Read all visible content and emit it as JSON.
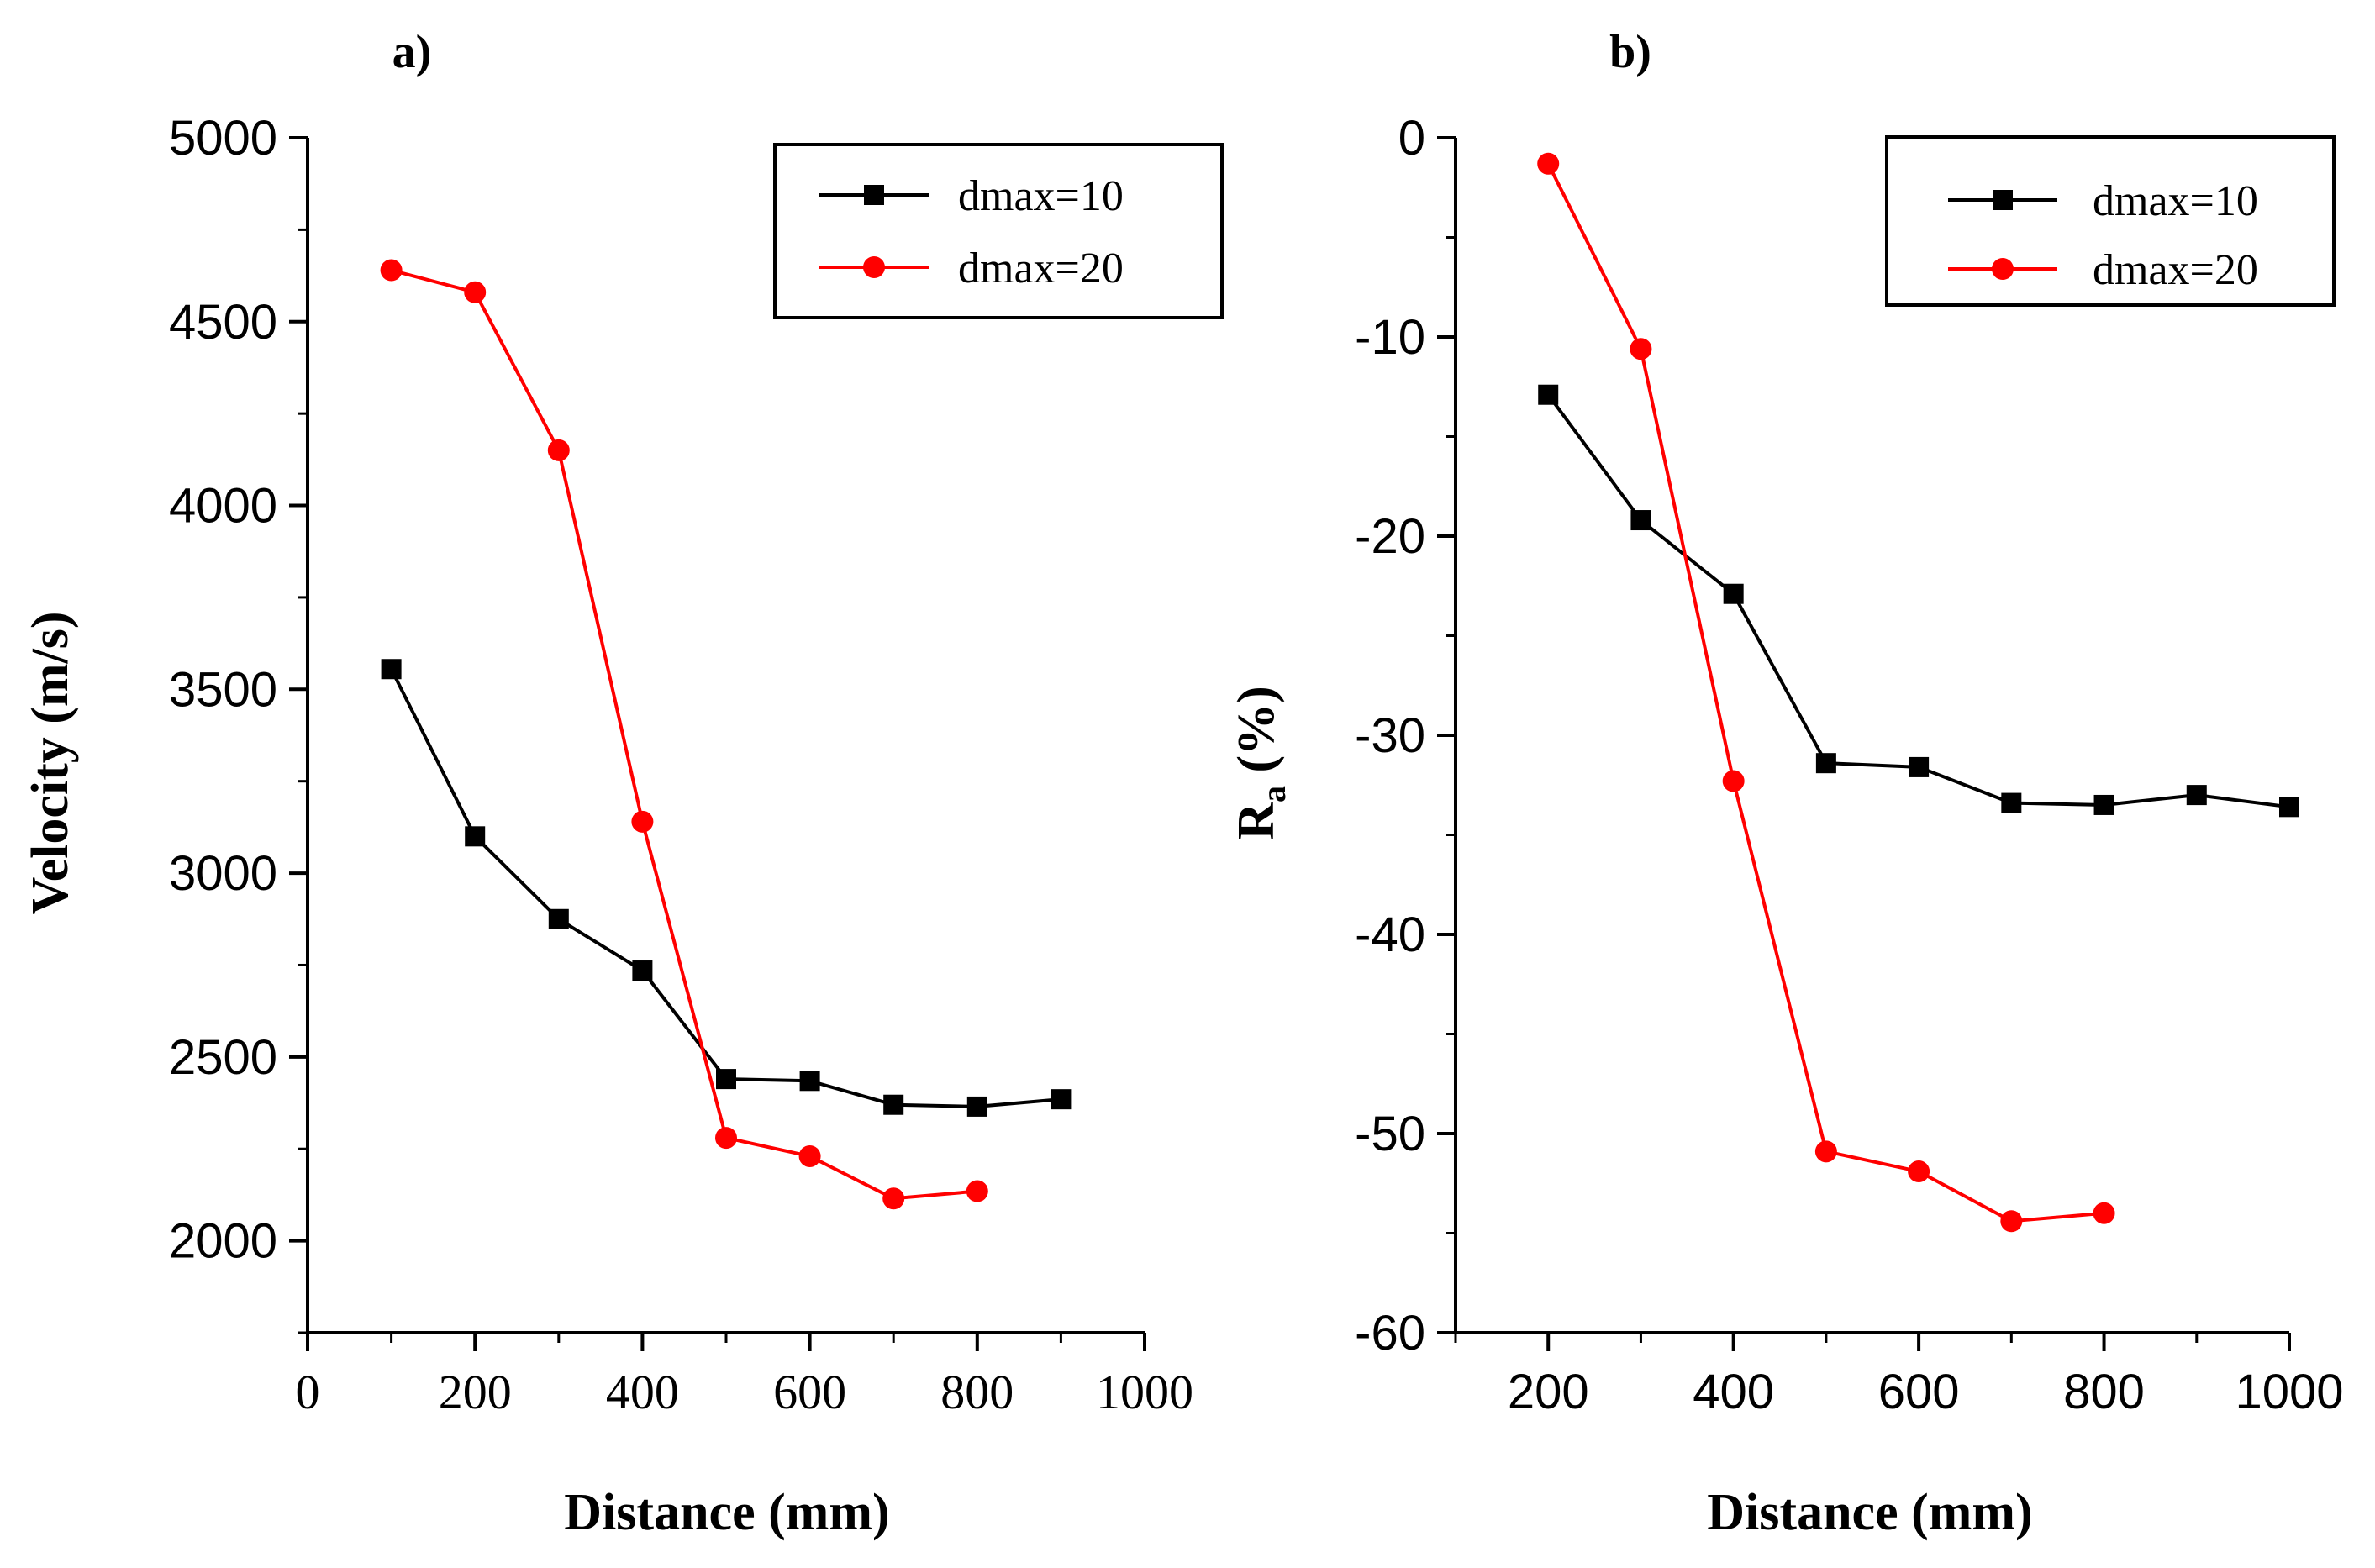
{
  "colors": {
    "series1": "#000000",
    "series2": "#ff0000",
    "axis": "#000000"
  },
  "chart_data": [
    {
      "panel_label": "a)",
      "type": "line",
      "xlabel": "Distance (mm)",
      "ylabel": "Velocity (m/s)",
      "xlim": [
        0,
        1000
      ],
      "ylim": [
        1750,
        5000
      ],
      "xticks": [
        0,
        200,
        400,
        600,
        800,
        1000
      ],
      "yticks": [
        2000,
        2500,
        3000,
        3500,
        4000,
        4500,
        5000
      ],
      "xtick_labels": [
        "0",
        "200",
        "400",
        "600",
        "800",
        "1000"
      ],
      "ytick_labels": [
        "2000",
        "2500",
        "3000",
        "3500",
        "4000",
        "4500",
        "5000"
      ],
      "legend_position": "top-right",
      "series": [
        {
          "name": "dmax=10",
          "marker": "square",
          "x": [
            100,
            200,
            300,
            400,
            500,
            600,
            700,
            800,
            900
          ],
          "values": [
            3555,
            3100,
            2875,
            2735,
            2440,
            2435,
            2370,
            2365,
            2385
          ]
        },
        {
          "name": "dmax=20",
          "marker": "circle",
          "x": [
            100,
            200,
            300,
            400,
            500,
            600,
            700,
            800
          ],
          "values": [
            4640,
            4580,
            4150,
            3140,
            2280,
            2230,
            2115,
            2135
          ]
        }
      ]
    },
    {
      "panel_label": "b)",
      "type": "line",
      "xlabel": "Distance (mm)",
      "ylabel_main": "R",
      "ylabel_sub": "a",
      "ylabel_unit": "(%)",
      "xlim": [
        100,
        1000
      ],
      "ylim": [
        -60,
        0
      ],
      "xticks": [
        200,
        400,
        600,
        800,
        1000
      ],
      "yticks": [
        0,
        -10,
        -20,
        -30,
        -40,
        -50,
        -60
      ],
      "xtick_labels": [
        "200",
        "400",
        "600",
        "800",
        "1000"
      ],
      "ytick_labels": [
        "0",
        "-10",
        "-20",
        "-30",
        "-40",
        "-50",
        "-60"
      ],
      "legend_position": "top-right",
      "series": [
        {
          "name": "dmax=10",
          "marker": "square",
          "x": [
            200,
            300,
            400,
            500,
            600,
            700,
            800,
            900,
            1000
          ],
          "values": [
            -12.9,
            -19.2,
            -22.9,
            -31.4,
            -31.6,
            -33.4,
            -33.5,
            -33.0,
            -33.6
          ]
        },
        {
          "name": "dmax=20",
          "marker": "circle",
          "x": [
            200,
            300,
            400,
            500,
            600,
            700,
            800
          ],
          "values": [
            -1.3,
            -10.6,
            -32.3,
            -50.9,
            -51.9,
            -54.4,
            -54.0
          ]
        }
      ]
    }
  ]
}
